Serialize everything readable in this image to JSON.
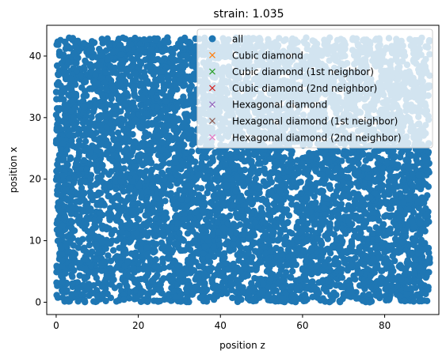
{
  "chart_data": {
    "type": "scatter",
    "title": "strain: 1.035",
    "xlabel": "position z",
    "ylabel": "position x",
    "xlim": [
      -2.3,
      93.2
    ],
    "ylim": [
      -2.0,
      45.0
    ],
    "xticks": [
      0,
      20,
      40,
      60,
      80
    ],
    "yticks": [
      0,
      10,
      20,
      30,
      40
    ],
    "grid": false,
    "legend_position": "upper right",
    "series": [
      {
        "name": "all",
        "marker": "circle",
        "color": "#1f77b4",
        "x_range": [
          0,
          91
        ],
        "y_range": [
          0,
          43
        ]
      },
      {
        "name": "Cubic diamond",
        "marker": "x",
        "color": "#ff7f0e",
        "values": []
      },
      {
        "name": "Cubic diamond (1st neighbor)",
        "marker": "x",
        "color": "#2ca02c",
        "values": []
      },
      {
        "name": "Cubic diamond (2nd neighbor)",
        "marker": "x",
        "color": "#d62728",
        "values": []
      },
      {
        "name": "Hexagonal diamond",
        "marker": "x",
        "color": "#9467bd",
        "values": []
      },
      {
        "name": "Hexagonal diamond (1st neighbor)",
        "marker": "x",
        "color": "#8c564b",
        "values": []
      },
      {
        "name": "Hexagonal diamond (2nd neighbor)",
        "marker": "x",
        "color": "#e377c2",
        "values": []
      }
    ]
  }
}
